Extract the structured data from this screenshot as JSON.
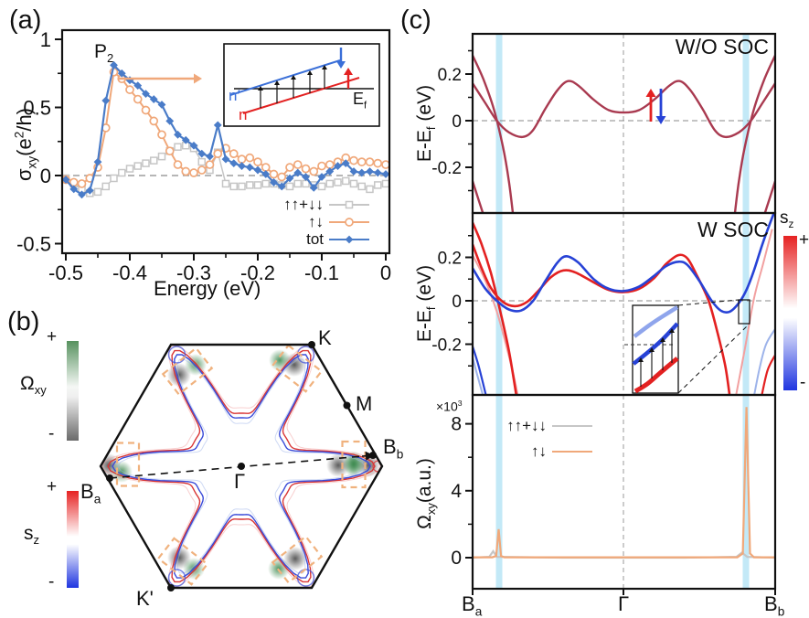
{
  "colors": {
    "maroon": "#a93a50",
    "band_red": "#e32121",
    "band_blue": "#2742d6",
    "light_red": "#f2a0a0",
    "light_blue_band": "#9db3ea",
    "stripe_blue": "#c3e9f7",
    "orange": "#f0a87a",
    "gray": "#c6c6c6",
    "blue_tot": "#4a7cc8",
    "dash_gray": "#8a8a8a",
    "contour_red": "#d93535",
    "contour_blue": "#3a4bd8",
    "smudge_green": "#3e8a50",
    "smudge_gray": "#4a4a4a",
    "rect_orange": "#f0b27e",
    "cb_green": "#57925f",
    "cb_gray": "#6a6a6a",
    "cb_red": "#e62222",
    "cb_blue": "#1f35e0",
    "black": "#111111"
  },
  "panels": {
    "a": {
      "letter": "(a)",
      "xlabel": "Energy (eV)",
      "ylabel": {
        "p1": "σ",
        "sub": "xy",
        "p2": "(e",
        "sup": "2",
        "p3": "/h)"
      },
      "x_ticks": [
        "-0.5",
        "-0.4",
        "-0.3",
        "-0.2",
        "-0.1",
        "0"
      ],
      "y_ticks": [
        "1",
        "0.5",
        "0",
        "-0.5"
      ],
      "peak_label": {
        "p1": "P",
        "sub": "2"
      },
      "legend": [
        {
          "label": "↑↑+↓↓",
          "marker": "square",
          "color_key": "gray"
        },
        {
          "label": "↑↓",
          "marker": "circle",
          "color_key": "orange"
        },
        {
          "label": "tot",
          "marker": "diamond",
          "color_key": "blue_tot"
        }
      ],
      "inset": {
        "n_prime": "n′",
        "n": "n",
        "ef": {
          "p1": "E",
          "sub": "f"
        }
      }
    },
    "b": {
      "letter": "(b)",
      "points": {
        "K": {
          "main": "K",
          "sub": ""
        },
        "M": {
          "main": "M",
          "sub": ""
        },
        "Bb": {
          "main": "B",
          "sub": "b"
        },
        "Gamma": {
          "main": "Γ",
          "sub": ""
        },
        "Ba": {
          "main": "B",
          "sub": "a"
        },
        "Kp": {
          "main": "K'",
          "sub": ""
        }
      },
      "colorbar_omega": {
        "label": {
          "p1": "Ω",
          "sub": "xy"
        },
        "plus": "+",
        "minus": "-"
      },
      "colorbar_sz": {
        "label": {
          "p1": "s",
          "sub": "z"
        },
        "plus": "+",
        "minus": "-"
      }
    },
    "c": {
      "letter": "(c)",
      "top_label": "W/O SOC",
      "mid_label": "W SOC",
      "ylabel_e": {
        "p1": "E-E",
        "sub": "f",
        "p2": " (eV)"
      },
      "ylabel_omega": {
        "p1": "Ω",
        "sub": "xy",
        "p2": "(a.u.)"
      },
      "scale_label": {
        "p1": "×10",
        "sup": "3"
      },
      "e_ticks": [
        "0.2",
        "0",
        "-0.2"
      ],
      "omega_ticks": [
        "8",
        "4",
        "0"
      ],
      "x_ticks": {
        "Ba": {
          "main": "B",
          "sub": "a"
        },
        "Gamma": {
          "main": "Γ",
          "sub": ""
        },
        "Bb": {
          "main": "B",
          "sub": "b"
        }
      },
      "legend": [
        {
          "label": "↑↑+↓↓",
          "color_key": "gray"
        },
        {
          "label": "↑↓",
          "color_key": "orange"
        }
      ],
      "colorbar_sz": {
        "label": {
          "p1": "s",
          "sub": "z"
        },
        "plus": "+",
        "minus": "-"
      }
    }
  },
  "chart_data": [
    {
      "id": "panel_a",
      "type": "line",
      "xlabel": "Energy (eV)",
      "ylabel": "sigma_xy (e^2/h)",
      "xlim": [
        -0.5,
        0
      ],
      "ylim": [
        -0.57,
        1.07
      ],
      "x_start": -0.5,
      "x_step": 0.0125,
      "annotation": "P2 peak near (-0.425, 0.81)",
      "series": [
        {
          "name": "↑↑+↓↓",
          "marker": "square",
          "color_key": "gray",
          "values": [
            -0.02,
            -0.06,
            -0.1,
            -0.13,
            -0.12,
            -0.08,
            -0.02,
            0.02,
            0.05,
            0.07,
            0.09,
            0.11,
            0.14,
            0.18,
            0.21,
            0.22,
            0.2,
            0.1,
            0.04,
            0.17,
            -0.06,
            -0.08,
            -0.08,
            -0.07,
            -0.07,
            -0.06,
            -0.06,
            -0.07,
            -0.08,
            -0.06,
            -0.06,
            -0.07,
            -0.08,
            -0.06,
            -0.05,
            -0.04,
            -0.06,
            -0.08,
            -0.1,
            -0.07,
            -0.06
          ]
        },
        {
          "name": "↑↓",
          "marker": "circle",
          "color_key": "orange",
          "values": [
            -0.03,
            -0.05,
            -0.06,
            -0.02,
            0.06,
            0.35,
            0.76,
            0.71,
            0.63,
            0.56,
            0.48,
            0.4,
            0.3,
            0.18,
            0.08,
            0.03,
            0.02,
            0.04,
            0.08,
            0.16,
            0.2,
            0.16,
            0.12,
            0.13,
            0.1,
            0.06,
            0.01,
            -0.01,
            0.06,
            0.08,
            0.05,
            0.03,
            0.07,
            0.08,
            0.1,
            0.13,
            0.11,
            0.1,
            0.1,
            0.09,
            0.08
          ]
        },
        {
          "name": "tot",
          "marker": "diamond",
          "color_key": "blue_tot",
          "values": [
            -0.03,
            -0.1,
            -0.14,
            -0.11,
            0.1,
            0.55,
            0.81,
            0.75,
            0.7,
            0.66,
            0.6,
            0.56,
            0.52,
            0.4,
            0.3,
            0.26,
            0.22,
            0.16,
            0.14,
            0.37,
            0.12,
            0.09,
            0.07,
            0.06,
            0.04,
            0.01,
            -0.05,
            -0.08,
            -0.02,
            0.02,
            -0.01,
            -0.09,
            -0.01,
            0.03,
            0.07,
            0.09,
            0.03,
            0.02,
            0.03,
            0.02,
            0.01
          ]
        }
      ]
    },
    {
      "id": "panel_c_top",
      "type": "line",
      "title": "W/O SOC",
      "ylabel": "E-Ef (eV)",
      "ylim": [
        -0.396,
        0.373
      ],
      "x_path": [
        "Ba",
        "Gamma",
        "Bb"
      ],
      "bands": {
        "wavy": [
          [
            0,
            0.16
          ],
          [
            0.04,
            0.08
          ],
          [
            0.08,
            0.0
          ],
          [
            0.12,
            -0.05
          ],
          [
            0.165,
            -0.07
          ],
          [
            0.2,
            -0.04
          ],
          [
            0.24,
            0.05
          ],
          [
            0.28,
            0.13
          ],
          [
            0.315,
            0.17
          ],
          [
            0.35,
            0.15
          ],
          [
            0.4,
            0.09
          ],
          [
            0.45,
            0.045
          ],
          [
            0.5,
            0.035
          ],
          [
            0.55,
            0.045
          ],
          [
            0.6,
            0.09
          ],
          [
            0.65,
            0.15
          ],
          [
            0.685,
            0.17
          ],
          [
            0.72,
            0.13
          ],
          [
            0.76,
            0.05
          ],
          [
            0.8,
            -0.04
          ],
          [
            0.835,
            -0.07
          ],
          [
            0.88,
            -0.05
          ],
          [
            0.92,
            0.0
          ],
          [
            0.96,
            0.08
          ],
          [
            1,
            0.16
          ]
        ],
        "plunge_left": [
          [
            0,
            0.28
          ],
          [
            0.035,
            0.18
          ],
          [
            0.07,
            0.05
          ],
          [
            0.1,
            -0.11
          ],
          [
            0.12,
            -0.26
          ],
          [
            0.135,
            -0.42
          ]
        ],
        "plunge_right": [
          [
            0.865,
            -0.42
          ],
          [
            0.88,
            -0.26
          ],
          [
            0.9,
            -0.11
          ],
          [
            0.93,
            0.05
          ],
          [
            0.965,
            0.18
          ],
          [
            1,
            0.28
          ]
        ],
        "corner_left": [
          [
            0,
            -0.26
          ],
          [
            0.02,
            -0.34
          ],
          [
            0.04,
            -0.42
          ]
        ],
        "corner_right": [
          [
            0.96,
            -0.42
          ],
          [
            0.98,
            -0.34
          ],
          [
            1,
            -0.26
          ]
        ]
      }
    },
    {
      "id": "panel_c_mid",
      "type": "line",
      "title": "W SOC",
      "ylabel": "E-Ef (eV)",
      "ylim": [
        -0.434,
        0.404
      ],
      "bands": {
        "blue": [
          [
            0,
            0.15
          ],
          [
            0.04,
            0.06
          ],
          [
            0.08,
            0.0
          ],
          [
            0.12,
            -0.04
          ],
          [
            0.16,
            -0.045
          ],
          [
            0.2,
            0.0
          ],
          [
            0.24,
            0.09
          ],
          [
            0.28,
            0.175
          ],
          [
            0.31,
            0.205
          ],
          [
            0.35,
            0.175
          ],
          [
            0.4,
            0.1
          ],
          [
            0.45,
            0.055
          ],
          [
            0.5,
            0.045
          ],
          [
            0.55,
            0.065
          ],
          [
            0.6,
            0.115
          ],
          [
            0.64,
            0.16
          ],
          [
            0.68,
            0.18
          ],
          [
            0.71,
            0.165
          ],
          [
            0.75,
            0.09
          ],
          [
            0.79,
            0.0
          ],
          [
            0.82,
            -0.045
          ],
          [
            0.85,
            -0.05
          ],
          [
            0.88,
            -0.01
          ],
          [
            0.905,
            0.05
          ],
          [
            0.93,
            0.14
          ],
          [
            0.96,
            0.27
          ],
          [
            1,
            0.42
          ]
        ],
        "red": [
          [
            0,
            0.26
          ],
          [
            0.03,
            0.15
          ],
          [
            0.06,
            0.06
          ],
          [
            0.1,
            -0.005
          ],
          [
            0.14,
            -0.025
          ],
          [
            0.18,
            -0.005
          ],
          [
            0.22,
            0.05
          ],
          [
            0.26,
            0.11
          ],
          [
            0.3,
            0.14
          ],
          [
            0.34,
            0.13
          ],
          [
            0.4,
            0.085
          ],
          [
            0.45,
            0.05
          ],
          [
            0.5,
            0.04
          ],
          [
            0.55,
            0.055
          ],
          [
            0.6,
            0.105
          ],
          [
            0.64,
            0.17
          ],
          [
            0.68,
            0.21
          ],
          [
            0.71,
            0.195
          ],
          [
            0.74,
            0.12
          ],
          [
            0.78,
            0.0
          ],
          [
            0.81,
            -0.15
          ],
          [
            0.835,
            -0.3
          ],
          [
            0.85,
            -0.44
          ]
        ],
        "red_plunge_left": [
          [
            0,
            0.36
          ],
          [
            0.03,
            0.26
          ],
          [
            0.06,
            0.13
          ],
          [
            0.09,
            -0.04
          ],
          [
            0.12,
            -0.23
          ],
          [
            0.145,
            -0.44
          ]
        ],
        "pink_plunge_left": [
          [
            0,
            0.21
          ],
          [
            0.04,
            0.1
          ],
          [
            0.08,
            -0.05
          ],
          [
            0.11,
            -0.2
          ],
          [
            0.135,
            -0.34
          ],
          [
            0.15,
            -0.44
          ]
        ],
        "blue_corner_left_1": [
          [
            0,
            -0.21
          ],
          [
            0.02,
            -0.3
          ],
          [
            0.045,
            -0.44
          ]
        ],
        "blue_corner_left_2": [
          [
            0,
            -0.26
          ],
          [
            0.015,
            -0.34
          ],
          [
            0.035,
            -0.44
          ]
        ],
        "light_red_right": [
          [
            0.87,
            -0.44
          ],
          [
            0.9,
            -0.22
          ],
          [
            0.93,
            0.01
          ],
          [
            0.96,
            0.17
          ],
          [
            0.99,
            0.33
          ]
        ],
        "blue_bottom_right": [
          [
            0.93,
            -0.44
          ],
          [
            0.95,
            -0.3
          ],
          [
            0.97,
            -0.2
          ],
          [
            1,
            -0.13
          ]
        ],
        "red_corner_right": [
          [
            0.955,
            -0.44
          ],
          [
            0.975,
            -0.32
          ],
          [
            1,
            -0.25
          ]
        ]
      }
    },
    {
      "id": "panel_c_bottom",
      "type": "line",
      "ylabel": "Omega_xy (a.u.)",
      "unit_scale": "×10^3",
      "ylim_units_1e3": [
        -1.86,
        9.7
      ],
      "series": [
        {
          "name": "↑↑+↓↓",
          "color_key": "gray",
          "points": [
            [
              0,
              0.0
            ],
            [
              0.055,
              0.05
            ],
            [
              0.068,
              0.38
            ],
            [
              0.08,
              0.05
            ],
            [
              0.3,
              0.0
            ],
            [
              0.5,
              0.0
            ],
            [
              0.7,
              0.0
            ],
            [
              0.872,
              0.05
            ],
            [
              0.89,
              0.3
            ],
            [
              0.908,
              0.05
            ],
            [
              1,
              0.0
            ]
          ]
        },
        {
          "name": "↑↓",
          "color_key": "orange",
          "points": [
            [
              0,
              0.02
            ],
            [
              0.065,
              0.02
            ],
            [
              0.078,
              0.1
            ],
            [
              0.086,
              1.7
            ],
            [
              0.094,
              0.1
            ],
            [
              0.105,
              0.02
            ],
            [
              0.3,
              0.02
            ],
            [
              0.5,
              0.02
            ],
            [
              0.7,
              0.02
            ],
            [
              0.875,
              0.02
            ],
            [
              0.893,
              0.25
            ],
            [
              0.905,
              9.0
            ],
            [
              0.917,
              0.25
            ],
            [
              0.93,
              0.02
            ],
            [
              1,
              0.02
            ]
          ]
        }
      ]
    }
  ]
}
